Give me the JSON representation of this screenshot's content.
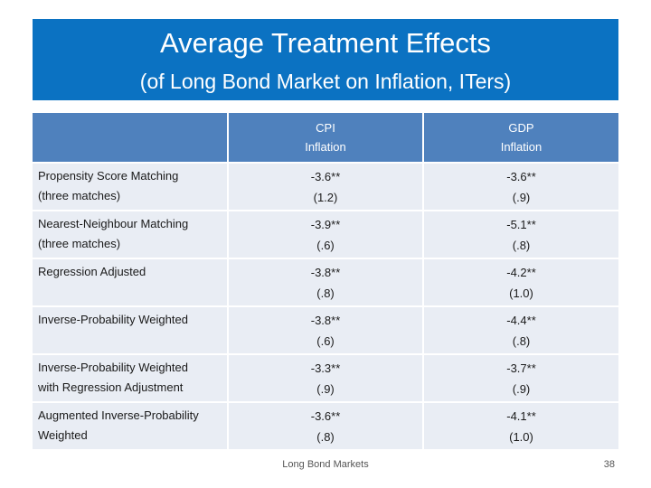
{
  "slide": {
    "title": "Average Treatment Effects",
    "subtitle": "(of Long Bond Market on Inflation, ITers)",
    "footer": "Long Bond Markets",
    "page_number": "38"
  },
  "table": {
    "columns": [
      {
        "line1": "",
        "line2": ""
      },
      {
        "line1": "CPI",
        "line2": "Inflation"
      },
      {
        "line1": "GDP",
        "line2": "Inflation"
      }
    ],
    "rows": [
      {
        "label1": "Propensity Score Matching",
        "label2": "(three matches)",
        "cpi_est": "-3.6**",
        "cpi_se": "(1.2)",
        "gdp_est": "-3.6**",
        "gdp_se": "(.9)"
      },
      {
        "label1": "Nearest-Neighbour Matching",
        "label2": "(three matches)",
        "cpi_est": "-3.9**",
        "cpi_se": "(.6)",
        "gdp_est": "-5.1**",
        "gdp_se": "(.8)"
      },
      {
        "label1": "Regression Adjusted",
        "label2": "",
        "cpi_est": "-3.8**",
        "cpi_se": "(.8)",
        "gdp_est": "-4.2**",
        "gdp_se": "(1.0)"
      },
      {
        "label1": "Inverse-Probability Weighted",
        "label2": "",
        "cpi_est": "-3.8**",
        "cpi_se": "(.6)",
        "gdp_est": "-4.4**",
        "gdp_se": "(.8)"
      },
      {
        "label1": "Inverse-Probability Weighted",
        "label2": "with Regression Adjustment",
        "cpi_est": "-3.3**",
        "cpi_se": "(.9)",
        "gdp_est": "-3.7**",
        "gdp_se": "(.9)"
      },
      {
        "label1": "Augmented Inverse-Probability",
        "label2": "Weighted",
        "cpi_est": "-3.6**",
        "cpi_se": "(.8)",
        "gdp_est": "-4.1**",
        "gdp_se": "(1.0)"
      }
    ]
  }
}
